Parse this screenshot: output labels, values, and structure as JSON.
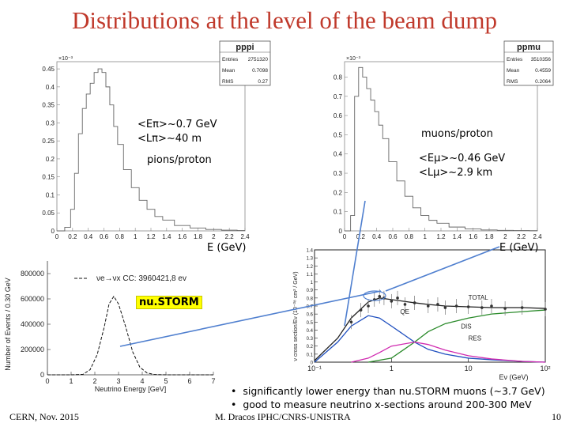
{
  "slide": {
    "title": "Distributions at the level of the beam dump",
    "footer_left": "CERN, Nov. 2015",
    "footer_center": "M. Dracos IPHC/CNRS-UNISTRA",
    "page_number": "10",
    "bullets": [
      "significantly lower energy than nu.STORM muons (~3.7 GeV)",
      "good to measure neutrino x-sections around 200-300 MeV"
    ],
    "highlight_label": "nu.STORM"
  },
  "pion_annotations": {
    "mean_energy": "<Eπ>~0.7 GeV",
    "mean_length": "<Lπ>~40 m",
    "per_proton": "pions/proton",
    "energy_axis": "E (GeV)"
  },
  "muon_annotations": {
    "per_proton": "muons/proton",
    "mean_energy": "<Eμ>~0.46 GeV",
    "mean_length": "<Lμ>~2.9 km",
    "energy_axis": "E (GeV)"
  },
  "chart_data": [
    {
      "type": "line",
      "title": "pppi",
      "stats": [
        {
          "label": "Entries",
          "value": "2751320"
        },
        {
          "label": "Mean",
          "value": "0.7098"
        },
        {
          "label": "RMS",
          "value": "0.27"
        }
      ],
      "y_multiplier": "×10⁻³",
      "xlabel": "E (GeV)",
      "xlim": [
        0,
        2.4
      ],
      "ylim": [
        0,
        0.47
      ],
      "xticks": [
        "0",
        "0.2",
        "0.4",
        "0.6",
        "0.8",
        "1",
        "1.2",
        "1.4",
        "1.6",
        "1.8",
        "2",
        "2.2",
        "2.4"
      ],
      "yticks": [
        "0",
        "0.05",
        "0.1",
        "0.15",
        "0.2",
        "0.25",
        "0.3",
        "0.35",
        "0.4",
        "0.45"
      ],
      "x": [
        0.05,
        0.15,
        0.2,
        0.25,
        0.3,
        0.35,
        0.4,
        0.45,
        0.5,
        0.55,
        0.6,
        0.65,
        0.7,
        0.75,
        0.8,
        0.9,
        1.0,
        1.1,
        1.2,
        1.3,
        1.4,
        1.6,
        1.8,
        2.0,
        2.2,
        2.4
      ],
      "y": [
        0.0,
        0.01,
        0.06,
        0.16,
        0.27,
        0.34,
        0.38,
        0.41,
        0.44,
        0.45,
        0.44,
        0.4,
        0.35,
        0.29,
        0.24,
        0.17,
        0.12,
        0.085,
        0.06,
        0.04,
        0.03,
        0.015,
        0.008,
        0.004,
        0.002,
        0.001
      ]
    },
    {
      "type": "line",
      "title": "ppmu",
      "stats": [
        {
          "label": "Entries",
          "value": "3510356"
        },
        {
          "label": "Mean",
          "value": "0.4559"
        },
        {
          "label": "RMS",
          "value": "0.2064"
        }
      ],
      "y_multiplier": "×10⁻³",
      "xlabel": "E (GeV)",
      "xlim": [
        0,
        2.4
      ],
      "ylim": [
        0,
        0.88
      ],
      "xticks": [
        "0",
        "0.2",
        "0.4",
        "0.6",
        "0.8",
        "1",
        "1.2",
        "1.4",
        "1.6",
        "1.8",
        "2",
        "2.2",
        "2.4"
      ],
      "yticks": [
        "0",
        "0.1",
        "0.2",
        "0.3",
        "0.4",
        "0.5",
        "0.6",
        "0.7",
        "0.8"
      ],
      "x": [
        0.05,
        0.1,
        0.15,
        0.2,
        0.25,
        0.3,
        0.35,
        0.4,
        0.45,
        0.5,
        0.6,
        0.7,
        0.8,
        0.9,
        1.0,
        1.1,
        1.2,
        1.4,
        1.6,
        1.8,
        2.0,
        2.2,
        2.4
      ],
      "y": [
        0.0,
        0.08,
        0.7,
        0.85,
        0.8,
        0.74,
        0.68,
        0.62,
        0.55,
        0.48,
        0.36,
        0.26,
        0.18,
        0.12,
        0.08,
        0.055,
        0.04,
        0.02,
        0.01,
        0.005,
        0.003,
        0.002,
        0.001
      ]
    },
    {
      "type": "line",
      "legend": "νe→νx CC: 3960421,8 ev",
      "xlabel": "Neutrino Energy [GeV]",
      "ylabel": "Number of Events / 0.30 GeV",
      "xlim": [
        0,
        7
      ],
      "ylim": [
        0,
        900000
      ],
      "xticks": [
        "0",
        "1",
        "2",
        "3",
        "4",
        "5",
        "6",
        "7"
      ],
      "yticks": [
        "0",
        "200000",
        "400000",
        "600000",
        "800000"
      ],
      "x": [
        0,
        0.5,
        1.0,
        1.5,
        1.8,
        2.1,
        2.4,
        2.6,
        2.8,
        3.0,
        3.3,
        3.6,
        3.9,
        4.2,
        4.5,
        5.0,
        5.5,
        6.0,
        7.0
      ],
      "y": [
        0,
        0,
        0,
        4000,
        40000,
        160000,
        380000,
        560000,
        620000,
        560000,
        380000,
        180000,
        60000,
        15000,
        3000,
        0,
        0,
        0,
        0
      ]
    },
    {
      "type": "scatter",
      "ylabel": "ν cross section/Eν (10⁻³⁸ cm² / GeV)",
      "xlabel": "Eν (GeV)",
      "x_scale": "log",
      "xlim": [
        0.1,
        100
      ],
      "ylim": [
        0,
        1.4
      ],
      "xticks": [
        "10⁻¹",
        "1",
        "10",
        "10²"
      ],
      "yticks": [
        "0",
        "0.1",
        "0.2",
        "0.3",
        "0.4",
        "0.5",
        "0.6",
        "0.7",
        "0.8",
        "0.9",
        "1",
        "1.1",
        "1.2",
        "1.3",
        "1.4"
      ],
      "curve_labels": [
        "TOTAL",
        "QE",
        "DIS",
        "RES"
      ],
      "curves": {
        "TOTAL": {
          "x": [
            0.1,
            0.2,
            0.3,
            0.5,
            0.7,
            1,
            2,
            3,
            5,
            10,
            20,
            50,
            100
          ],
          "y": [
            0.02,
            0.3,
            0.55,
            0.75,
            0.8,
            0.78,
            0.74,
            0.72,
            0.7,
            0.69,
            0.68,
            0.68,
            0.67
          ]
        },
        "QE": {
          "x": [
            0.1,
            0.2,
            0.3,
            0.5,
            0.7,
            1,
            2,
            3,
            5,
            10,
            20,
            50,
            100
          ],
          "y": [
            0.0,
            0.25,
            0.45,
            0.58,
            0.55,
            0.45,
            0.25,
            0.16,
            0.1,
            0.05,
            0.03,
            0.01,
            0.0
          ]
        },
        "DIS": {
          "x": [
            0.5,
            1,
            2,
            3,
            5,
            10,
            20,
            50,
            100
          ],
          "y": [
            0.0,
            0.05,
            0.25,
            0.38,
            0.48,
            0.55,
            0.6,
            0.63,
            0.65
          ]
        },
        "RES": {
          "x": [
            0.3,
            0.5,
            0.7,
            1,
            2,
            3,
            5,
            10,
            20,
            50,
            100
          ],
          "y": [
            0.0,
            0.05,
            0.12,
            0.2,
            0.25,
            0.22,
            0.15,
            0.08,
            0.04,
            0.01,
            0.0
          ]
        }
      },
      "measurements": {
        "x": [
          0.3,
          0.4,
          0.5,
          0.6,
          0.7,
          0.8,
          1.0,
          1.2,
          1.5,
          2,
          3,
          4,
          5,
          7,
          10,
          15,
          20,
          30,
          50,
          100
        ],
        "y": [
          0.5,
          0.65,
          0.7,
          0.78,
          0.82,
          0.8,
          0.76,
          0.8,
          0.72,
          0.74,
          0.7,
          0.72,
          0.68,
          0.7,
          0.69,
          0.68,
          0.7,
          0.67,
          0.68,
          0.66
        ]
      }
    }
  ]
}
